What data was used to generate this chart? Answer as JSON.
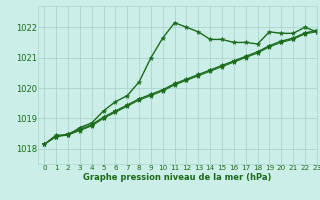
{
  "background_color": "#cceee8",
  "grid_color": "#aad4cc",
  "line_color": "#1a6b1a",
  "xlim": [
    -0.5,
    23
  ],
  "ylim": [
    1017.5,
    1022.7
  ],
  "yticks": [
    1018,
    1019,
    1020,
    1021,
    1022
  ],
  "xticks": [
    0,
    1,
    2,
    3,
    4,
    5,
    6,
    7,
    8,
    9,
    10,
    11,
    12,
    13,
    14,
    15,
    16,
    17,
    18,
    19,
    20,
    21,
    22,
    23
  ],
  "series": [
    [
      1018.15,
      1018.45,
      1018.45,
      1018.7,
      1018.85,
      1019.25,
      1019.55,
      1019.75,
      1020.2,
      1021.0,
      1021.65,
      1022.15,
      1022.0,
      1021.85,
      1021.6,
      1021.6,
      1021.5,
      1021.5,
      1021.45,
      1021.85,
      1021.8,
      1021.8,
      1022.0,
      1021.85
    ],
    [
      1018.15,
      1018.4,
      1018.45,
      1018.6,
      1018.75,
      1019.0,
      1019.2,
      1019.4,
      1019.6,
      1019.75,
      1019.9,
      1020.1,
      1020.25,
      1020.4,
      1020.55,
      1020.7,
      1020.85,
      1021.0,
      1021.15,
      1021.35,
      1021.5,
      1021.6,
      1021.78,
      1021.85
    ],
    [
      1018.15,
      1018.4,
      1018.48,
      1018.62,
      1018.78,
      1019.03,
      1019.23,
      1019.43,
      1019.63,
      1019.78,
      1019.93,
      1020.13,
      1020.28,
      1020.43,
      1020.58,
      1020.73,
      1020.88,
      1021.03,
      1021.18,
      1021.38,
      1021.53,
      1021.63,
      1021.8,
      1021.88
    ],
    [
      1018.15,
      1018.4,
      1018.5,
      1018.65,
      1018.8,
      1019.05,
      1019.25,
      1019.45,
      1019.65,
      1019.8,
      1019.95,
      1020.15,
      1020.3,
      1020.45,
      1020.6,
      1020.75,
      1020.9,
      1021.05,
      1021.2,
      1021.4,
      1021.55,
      1021.65,
      1021.82,
      1021.9
    ]
  ],
  "marker": "*",
  "marker_sizes": [
    3.5,
    3.5,
    3.5,
    3.5
  ],
  "linewidths": [
    1.0,
    0.7,
    0.7,
    0.7
  ],
  "xlabel": "Graphe pression niveau de la mer (hPa)",
  "xlabel_fontsize": 6.0,
  "ytick_fontsize": 6.0,
  "xtick_fontsize": 5.2
}
